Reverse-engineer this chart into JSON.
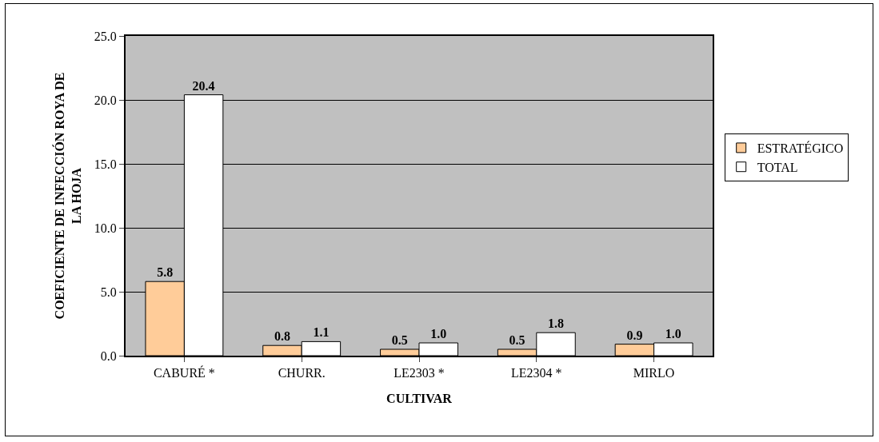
{
  "chart_data": {
    "type": "bar",
    "xlabel": "CULTIVAR",
    "ylabel": "COEFICIENTE DE INFECCIÓN ROYA DE LA HOJA",
    "categories": [
      "CABURÉ *",
      "CHURR.",
      "LE2303 *",
      "LE2304 *",
      "MIRLO"
    ],
    "series": [
      {
        "name": "ESTRATÉGICO",
        "color": "#ffcc99",
        "values": [
          5.8,
          0.8,
          0.5,
          0.5,
          0.9
        ],
        "value_labels": [
          "5.8",
          "0.8",
          "0.5",
          "0.5",
          "0.9"
        ]
      },
      {
        "name": "TOTAL",
        "color": "#ffffff",
        "values": [
          20.4,
          1.1,
          1.0,
          1.8,
          1.0
        ],
        "value_labels": [
          "20.4",
          "1.1",
          "1.0",
          "1.8",
          "1.0"
        ]
      }
    ],
    "ylim": [
      0,
      25
    ],
    "yticks": [
      {
        "value": 0,
        "label": "0.0"
      },
      {
        "value": 5,
        "label": "5.0"
      },
      {
        "value": 10,
        "label": "10.0"
      },
      {
        "value": 15,
        "label": "15.0"
      },
      {
        "value": 20,
        "label": "20.0"
      },
      {
        "value": 25,
        "label": "25.0"
      }
    ],
    "grid": "y",
    "legend": "right"
  }
}
